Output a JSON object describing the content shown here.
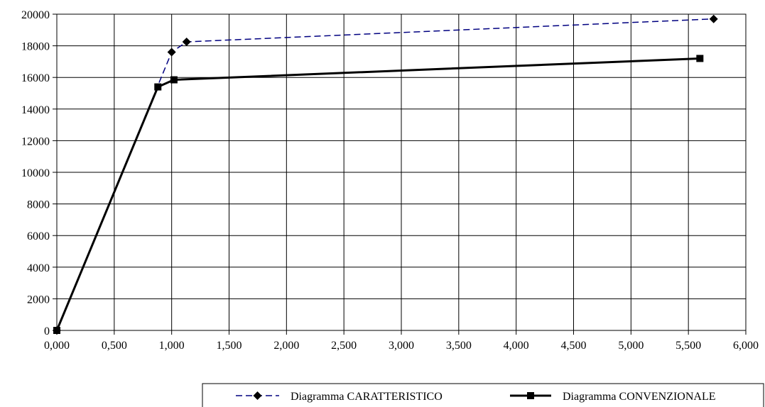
{
  "chart_data": {
    "type": "line",
    "title": "",
    "xlabel": "",
    "ylabel": "",
    "xlim": [
      0,
      6
    ],
    "ylim": [
      0,
      20000
    ],
    "x_ticks": [
      "0,000",
      "0,500",
      "1,000",
      "1,500",
      "2,000",
      "2,500",
      "3,000",
      "3,500",
      "4,000",
      "4,500",
      "5,000",
      "5,500",
      "6,000"
    ],
    "y_ticks": [
      "0",
      "2000",
      "4000",
      "6000",
      "8000",
      "10000",
      "12000",
      "14000",
      "16000",
      "18000",
      "20000"
    ],
    "grid": true,
    "legend_position": "bottom-right",
    "series": [
      {
        "name": "Diagramma CARATTERISTICO",
        "color": "#000080",
        "line_style": "dashed",
        "marker": "diamond",
        "x": [
          0,
          1.0,
          1.13,
          5.72
        ],
        "y": [
          0,
          17600,
          18250,
          19700
        ]
      },
      {
        "name": "Diagramma CONVENZIONALE",
        "color": "#000000",
        "line_style": "solid",
        "marker": "square",
        "x": [
          0,
          0.88,
          1.02,
          5.6
        ],
        "y": [
          0,
          15400,
          15850,
          17200
        ]
      }
    ]
  }
}
